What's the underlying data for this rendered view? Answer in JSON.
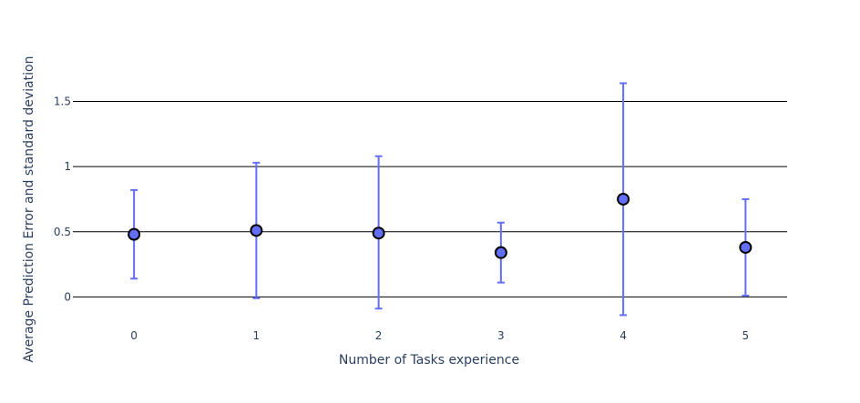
{
  "chart_data": {
    "type": "scatter",
    "xlabel": "Number of Tasks experience",
    "ylabel": "Average Prediction Error and standard deviation",
    "x": [
      0,
      1,
      2,
      3,
      4,
      5
    ],
    "x_tick_labels": [
      "0",
      "1",
      "2",
      "3",
      "4",
      "5"
    ],
    "y_tick_values": [
      0,
      0.5,
      1,
      1.5
    ],
    "y_tick_labels": [
      "0",
      "0.5",
      "1",
      "1.5"
    ],
    "xlim": [
      -0.5,
      5.34
    ],
    "ylim": [
      -0.2,
      1.86
    ],
    "grid": true,
    "series": [
      {
        "values": [
          0.48,
          0.51,
          0.49,
          0.34,
          0.75,
          0.38
        ],
        "error_low": [
          0.14,
          -0.01,
          -0.09,
          0.11,
          -0.14,
          0.01
        ],
        "error_high": [
          0.82,
          1.03,
          1.08,
          0.57,
          1.64,
          0.75
        ]
      }
    ],
    "colors": {
      "marker": "#636efa",
      "marker_outline": "#000000",
      "error_bar": "#636efa",
      "grid": "#000000",
      "text": "#2a3f5f"
    }
  }
}
